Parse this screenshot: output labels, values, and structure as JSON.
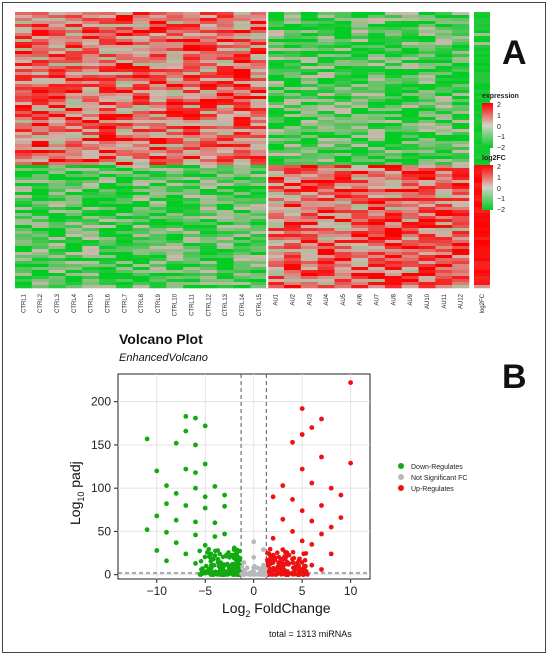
{
  "panels": {
    "a_label": "A",
    "b_label": "B"
  },
  "colors": {
    "up": "#ee1111",
    "down": "#11aa11",
    "ns": "#b8b8b8",
    "heat_hi": "#ff0000",
    "heat_mid": "#c9b2ab",
    "heat_lo": "#00cc22"
  },
  "chart_data": [
    {
      "type": "heatmap",
      "title": "",
      "columns": [
        "CTRL1",
        "CTRL2",
        "CTRL3",
        "CTRL4",
        "CTRL5",
        "CTRL6",
        "CTRL7",
        "CTRL8",
        "CTRL9",
        "CTRL10",
        "CTRL11",
        "CTRL12",
        "CTRL13",
        "CTRL14",
        "CTRL15",
        "AU1",
        "AU2",
        "AU3",
        "AU4",
        "AU5",
        "AU6",
        "AU7",
        "AU8",
        "AU9",
        "AU10",
        "AU11",
        "AU12"
      ],
      "side_column": "log2FC",
      "upper_block": "CTRL high (red), AU low (green)",
      "lower_block": "CTRL low (green), AU high (red)",
      "legend": [
        {
          "title": "expression",
          "ticks": [
            "2",
            "1",
            "0",
            "−1",
            "−2"
          ]
        },
        {
          "title": "log2FC",
          "ticks": [
            "2",
            "1",
            "0",
            "−1",
            "−2"
          ]
        }
      ]
    },
    {
      "type": "scatter",
      "title": "Volcano Plot",
      "subtitle": "EnhancedVolcano",
      "xlabel_main": "Log",
      "xlabel_sub": "2",
      "xlabel_tail": " FoldChange",
      "ylabel_main": "Log",
      "ylabel_sub": "10",
      "ylabel_tail": " padj",
      "xlim": [
        -14,
        12
      ],
      "ylim": [
        -5,
        232
      ],
      "x_ticks": [
        -10,
        -5,
        0,
        5,
        10
      ],
      "y_ticks": [
        0,
        50,
        100,
        150,
        200
      ],
      "fc_cutoff": [
        -1.3,
        1.3
      ],
      "p_cutoff_y": 2,
      "grid": true,
      "legend_position": "right",
      "series": [
        {
          "name": "Down-Regulates",
          "color": "#11aa11",
          "points": [
            [
              -11,
              157
            ],
            [
              -7,
              183
            ],
            [
              -6,
              181
            ],
            [
              -5,
              172
            ],
            [
              -7,
              166
            ],
            [
              -8,
              152
            ],
            [
              -6,
              150
            ],
            [
              -10,
              120
            ],
            [
              -5,
              128
            ],
            [
              -7,
              122
            ],
            [
              -6,
              118
            ],
            [
              -9,
              103
            ],
            [
              -6,
              100
            ],
            [
              -4,
              102
            ],
            [
              -8,
              94
            ],
            [
              -5,
              90
            ],
            [
              -3,
              92
            ],
            [
              -9,
              82
            ],
            [
              -7,
              80
            ],
            [
              -5,
              77
            ],
            [
              -3,
              79
            ],
            [
              -10,
              68
            ],
            [
              -8,
              63
            ],
            [
              -6,
              61
            ],
            [
              -4,
              60
            ],
            [
              -11,
              52
            ],
            [
              -9,
              49
            ],
            [
              -6,
              46
            ],
            [
              -4,
              44
            ],
            [
              -3,
              47
            ],
            [
              -8,
              37
            ],
            [
              -5,
              34
            ],
            [
              -2,
              31
            ],
            [
              -10,
              28
            ],
            [
              -7,
              24
            ],
            [
              -4,
              22
            ],
            [
              -2,
              19
            ],
            [
              -9,
              16
            ],
            [
              -6,
              13
            ],
            [
              -3,
              11
            ],
            [
              -2,
              8
            ]
          ]
        },
        {
          "name": "Not Significant FC",
          "color": "#b8b8b8",
          "points": [
            [
              -1,
              0
            ],
            [
              0,
              1
            ],
            [
              1,
              0
            ],
            [
              0,
              3
            ],
            [
              -1,
              5
            ],
            [
              1,
              4
            ],
            [
              0,
              2
            ],
            [
              0,
              8
            ],
            [
              1,
              11
            ],
            [
              -1,
              14
            ],
            [
              0,
              20
            ],
            [
              1,
              29
            ],
            [
              0,
              38
            ],
            [
              -1,
              2
            ],
            [
              1,
              7
            ]
          ]
        },
        {
          "name": "Up-Regulates",
          "color": "#ee1111",
          "points": [
            [
              10,
              222
            ],
            [
              5,
              192
            ],
            [
              7,
              180
            ],
            [
              6,
              170
            ],
            [
              10,
              129
            ],
            [
              5,
              162
            ],
            [
              4,
              153
            ],
            [
              7,
              136
            ],
            [
              5,
              122
            ],
            [
              6,
              106
            ],
            [
              3,
              103
            ],
            [
              8,
              100
            ],
            [
              9,
              92
            ],
            [
              2,
              90
            ],
            [
              4,
              87
            ],
            [
              7,
              80
            ],
            [
              5,
              74
            ],
            [
              9,
              66
            ],
            [
              3,
              64
            ],
            [
              6,
              62
            ],
            [
              8,
              55
            ],
            [
              4,
              50
            ],
            [
              7,
              47
            ],
            [
              2,
              42
            ],
            [
              5,
              39
            ],
            [
              6,
              35
            ],
            [
              3,
              29
            ],
            [
              8,
              24
            ],
            [
              4,
              18
            ],
            [
              2,
              14
            ],
            [
              6,
              11
            ],
            [
              3,
              8
            ],
            [
              7,
              6
            ]
          ]
        }
      ]
    }
  ],
  "caption": "total = 1313 miRNAs"
}
